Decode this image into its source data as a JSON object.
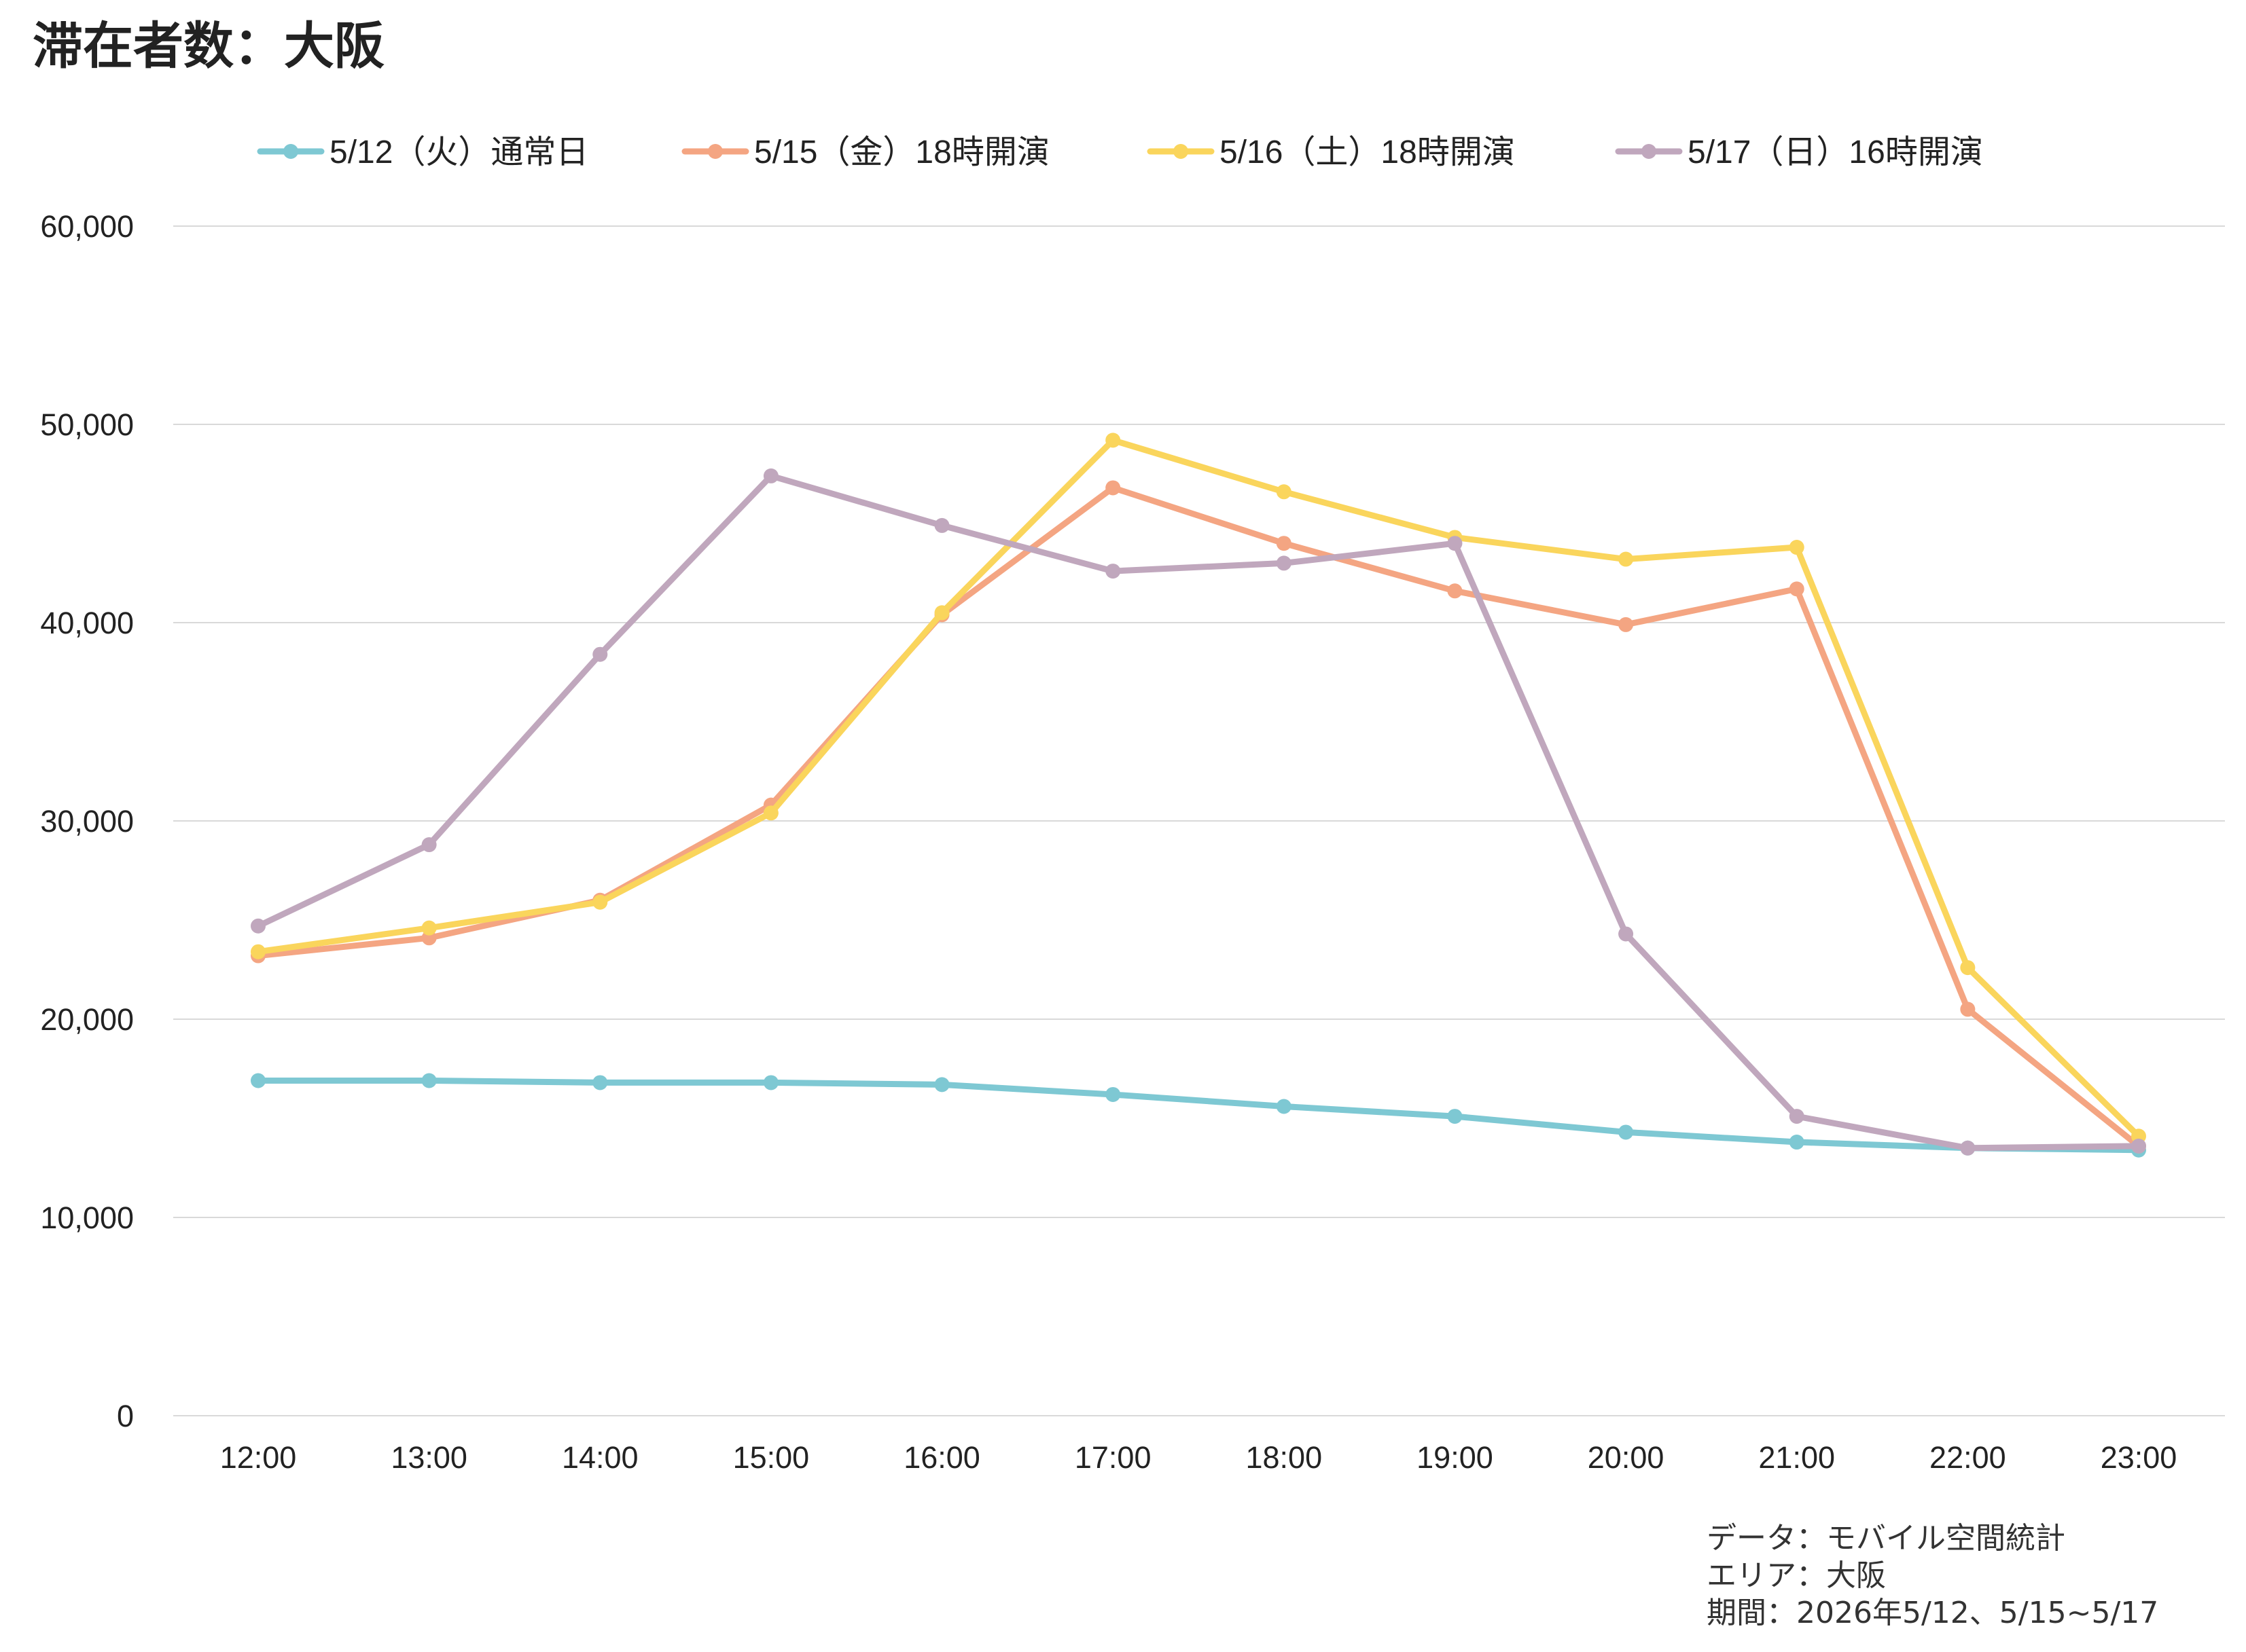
{
  "chart_data": {
    "type": "line",
    "title": "滞在者数：大阪",
    "xlabel": "",
    "ylabel": "",
    "categories": [
      "12:00",
      "13:00",
      "14:00",
      "15:00",
      "16:00",
      "17:00",
      "18:00",
      "19:00",
      "20:00",
      "21:00",
      "22:00",
      "23:00"
    ],
    "ylim": [
      0,
      60000
    ],
    "yticks": [
      0,
      10000,
      20000,
      30000,
      40000,
      50000,
      60000
    ],
    "ytick_labels": [
      "0",
      "10,000",
      "20,000",
      "30,000",
      "40,000",
      "50,000",
      "60,000"
    ],
    "grid": true,
    "legend_position": "top-center",
    "series": [
      {
        "name": "5/12（火）通常日",
        "color": "#7ec8d3",
        "values": [
          16900,
          16900,
          16800,
          16800,
          16700,
          16200,
          15600,
          15100,
          14300,
          13800,
          13500,
          13400
        ]
      },
      {
        "name": "5/15（金）18時開演",
        "color": "#f4a582",
        "values": [
          23200,
          24100,
          26000,
          30800,
          40400,
          46800,
          44000,
          41600,
          39900,
          41700,
          20500,
          13600
        ]
      },
      {
        "name": "5/16（土）18時開演",
        "color": "#fad55c",
        "values": [
          23400,
          24600,
          25900,
          30400,
          40500,
          49200,
          46600,
          44300,
          43200,
          43800,
          22600,
          14100
        ]
      },
      {
        "name": "5/17（日）16時開演",
        "color": "#c0a7bd",
        "values": [
          24700,
          28800,
          38400,
          47400,
          44900,
          42600,
          43000,
          44000,
          24300,
          15100,
          13500,
          13600
        ]
      }
    ]
  },
  "notes": {
    "line1": "データ：モバイル空間統計",
    "line2": "エリア：大阪",
    "line3": "期間：2026年5/12、5/15~5/17"
  },
  "colors": {
    "grid": "#d9d9d9",
    "text": "#222222"
  }
}
